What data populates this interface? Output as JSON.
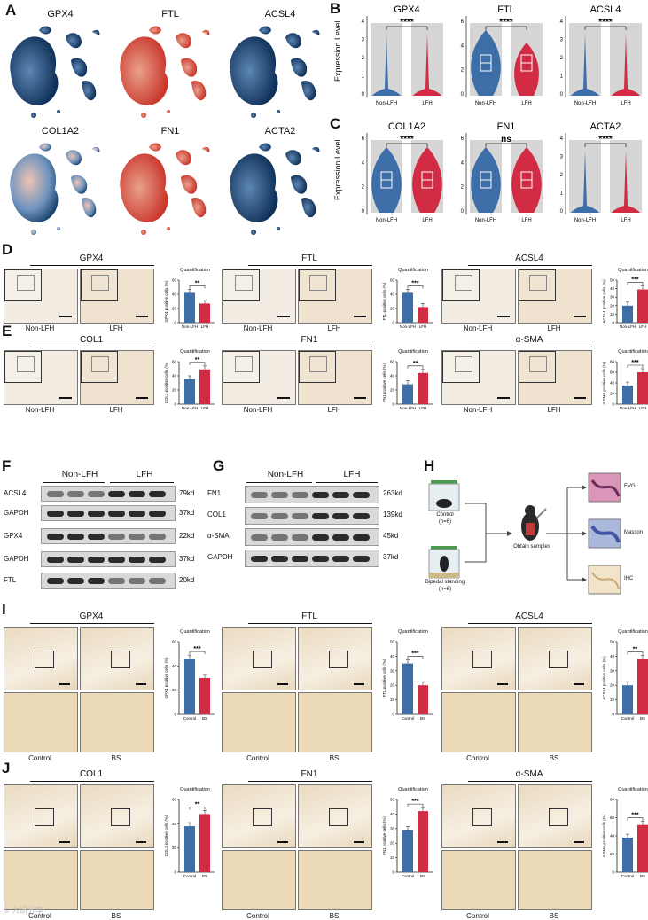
{
  "panels": {
    "A": {
      "letter": "A",
      "titles": [
        "GPX4",
        "FTL",
        "ACSL4",
        "COL1A2",
        "FN1",
        "ACTA2"
      ]
    },
    "B": {
      "letter": "B",
      "titles": [
        "GPX4",
        "FTL",
        "ACSL4"
      ],
      "ylabel": "Expression Level",
      "sig": [
        "****",
        "****",
        "****"
      ],
      "xcats": [
        "Non-LFH",
        "LFH"
      ],
      "yticks": [
        [
          "4",
          "3",
          "2",
          "1",
          "0"
        ],
        [
          "6",
          "4",
          "2",
          "0"
        ],
        [
          "4",
          "3",
          "2",
          "1",
          "0"
        ]
      ]
    },
    "C": {
      "letter": "C",
      "titles": [
        "COL1A2",
        "FN1",
        "ACTA2"
      ],
      "ylabel": "Expression Level",
      "sig": [
        "****",
        "ns",
        "****"
      ],
      "xcats": [
        "Non-LFH",
        "LFH"
      ],
      "yticks": [
        [
          "6",
          "4",
          "2",
          "0"
        ],
        [
          "6",
          "4",
          "2",
          "0"
        ],
        [
          "4",
          "3",
          "2",
          "1",
          "0"
        ]
      ]
    },
    "D": {
      "letter": "D",
      "titles": [
        "GPX4",
        "FTL",
        "ACSL4"
      ],
      "cond": [
        "Non-LFH",
        "LFH"
      ],
      "quant": "Quantification",
      "sig": [
        "**",
        "***",
        "***"
      ],
      "ylabels": [
        "GPX4 positive cells (%)",
        "FTL positive cells (%)",
        "ACSL4 positive cells (%)"
      ]
    },
    "E": {
      "letter": "E",
      "titles": [
        "COL1",
        "FN1",
        "α-SMA"
      ],
      "cond": [
        "Non-LFH",
        "LFH"
      ],
      "quant": "Quantification",
      "sig": [
        "**",
        "**",
        "***"
      ],
      "ylabels": [
        "COL1 positive cells (%)",
        "FN1 positive cells (%)",
        "α-SMA positive cells (%)"
      ]
    },
    "F": {
      "letter": "F",
      "groups": [
        "Non-LFH",
        "LFH"
      ],
      "rows": [
        "ACSL4",
        "GAPDH",
        "GPX4",
        "GAPDH",
        "FTL"
      ],
      "kd": [
        "79kd",
        "37kd",
        "22kd",
        "37kd",
        "20kd"
      ]
    },
    "G": {
      "letter": "G",
      "groups": [
        "Non-LFH",
        "LFH"
      ],
      "rows": [
        "FN1",
        "COL1",
        "α-SMA",
        "GAPDH"
      ],
      "kd": [
        "263kd",
        "139kd",
        "45kd",
        "37kd"
      ]
    },
    "H": {
      "letter": "H",
      "control": "Control",
      "control_n": "(n=6)",
      "bs": "Bipedal standing",
      "bs_n": "(n=6)",
      "obtain": "Obtain samples",
      "stains": [
        "EVG",
        "Masson",
        "IHC"
      ]
    },
    "I": {
      "letter": "I",
      "titles": [
        "GPX4",
        "FTL",
        "ACSL4"
      ],
      "cond": [
        "Control",
        "BS"
      ],
      "quant": "Quantification",
      "sig": [
        "***",
        "***",
        "**"
      ],
      "ylabels": [
        "GPX4 positive cells (%)",
        "FTL positive cells (%)",
        "ACSL4 positive cells (%)"
      ]
    },
    "J": {
      "letter": "J",
      "titles": [
        "COL1",
        "FN1",
        "α-SMA"
      ],
      "cond": [
        "Control",
        "BS"
      ],
      "quant": "Quantification",
      "sig": [
        "**",
        "***",
        "***"
      ],
      "ylabels": [
        "COL1 positive cells (%)",
        "FN1 positive cells (%)",
        "α-SMA positive cells (%)"
      ]
    }
  },
  "chart_data": [
    {
      "panel": "D",
      "type": "bar",
      "title": "Quantification",
      "categories": [
        "Non-LFH",
        "LFH"
      ],
      "charts": [
        {
          "ylabel": "GPX4 positive cells (%)",
          "values": [
            42,
            27
          ],
          "ylim": [
            0,
            60
          ],
          "yticks": [
            "60",
            "40",
            "20",
            "0"
          ]
        },
        {
          "ylabel": "FTL positive cells (%)",
          "values": [
            42,
            22
          ],
          "ylim": [
            0,
            60
          ],
          "yticks": [
            "60",
            "40",
            "20",
            "0"
          ]
        },
        {
          "ylabel": "ACSL4 positive cells (%)",
          "values": [
            20,
            39
          ],
          "ylim": [
            0,
            50
          ],
          "yticks": [
            "50",
            "40",
            "30",
            "20",
            "10",
            "0"
          ]
        }
      ]
    },
    {
      "panel": "E",
      "type": "bar",
      "title": "Quantification",
      "categories": [
        "Non-LFH",
        "LFH"
      ],
      "charts": [
        {
          "ylabel": "COL1 positive cells (%)",
          "values": [
            35,
            49
          ],
          "ylim": [
            0,
            60
          ],
          "yticks": [
            "60",
            "40",
            "20",
            "0"
          ]
        },
        {
          "ylabel": "FN1 positive cells (%)",
          "values": [
            28,
            44
          ],
          "ylim": [
            0,
            60
          ],
          "yticks": [
            "60",
            "40",
            "20",
            "0"
          ]
        },
        {
          "ylabel": "α-SMA positive cells (%)",
          "values": [
            35,
            60
          ],
          "ylim": [
            0,
            80
          ],
          "yticks": [
            "80",
            "60",
            "40",
            "20",
            "0"
          ]
        }
      ]
    },
    {
      "panel": "I",
      "type": "bar",
      "title": "Quantification",
      "categories": [
        "Control",
        "BS"
      ],
      "charts": [
        {
          "ylabel": "GPX4 positive cells (%)",
          "values": [
            46,
            30
          ],
          "ylim": [
            0,
            60
          ],
          "yticks": [
            "60",
            "40",
            "20",
            "0"
          ]
        },
        {
          "ylabel": "FTL positive cells (%)",
          "values": [
            35,
            20
          ],
          "ylim": [
            0,
            50
          ],
          "yticks": [
            "50",
            "40",
            "30",
            "20",
            "10",
            "0"
          ]
        },
        {
          "ylabel": "ACSL4 positive cells (%)",
          "values": [
            20,
            38
          ],
          "ylim": [
            0,
            50
          ],
          "yticks": [
            "50",
            "40",
            "30",
            "20",
            "10",
            "0"
          ]
        }
      ]
    },
    {
      "panel": "J",
      "type": "bar",
      "title": "Quantification",
      "categories": [
        "Control",
        "BS"
      ],
      "charts": [
        {
          "ylabel": "COL1 positive cells (%)",
          "values": [
            38,
            48
          ],
          "ylim": [
            0,
            60
          ],
          "yticks": [
            "60",
            "40",
            "20",
            "0"
          ]
        },
        {
          "ylabel": "FN1 positive cells (%)",
          "values": [
            29,
            42
          ],
          "ylim": [
            0,
            50
          ],
          "yticks": [
            "50",
            "40",
            "30",
            "20",
            "10",
            "0"
          ]
        },
        {
          "ylabel": "α-SMA positive cells (%)",
          "values": [
            38,
            52
          ],
          "ylim": [
            0,
            80
          ],
          "yticks": [
            "80",
            "60",
            "40",
            "20",
            "0"
          ]
        }
      ]
    }
  ],
  "colors": {
    "blue": "#3e6ea8",
    "red": "#d22b44",
    "umap_dark": "#0d2f57",
    "umap_red": "#c9352b",
    "grey": "#c8c8c8"
  },
  "watermark": "© 大研分享"
}
